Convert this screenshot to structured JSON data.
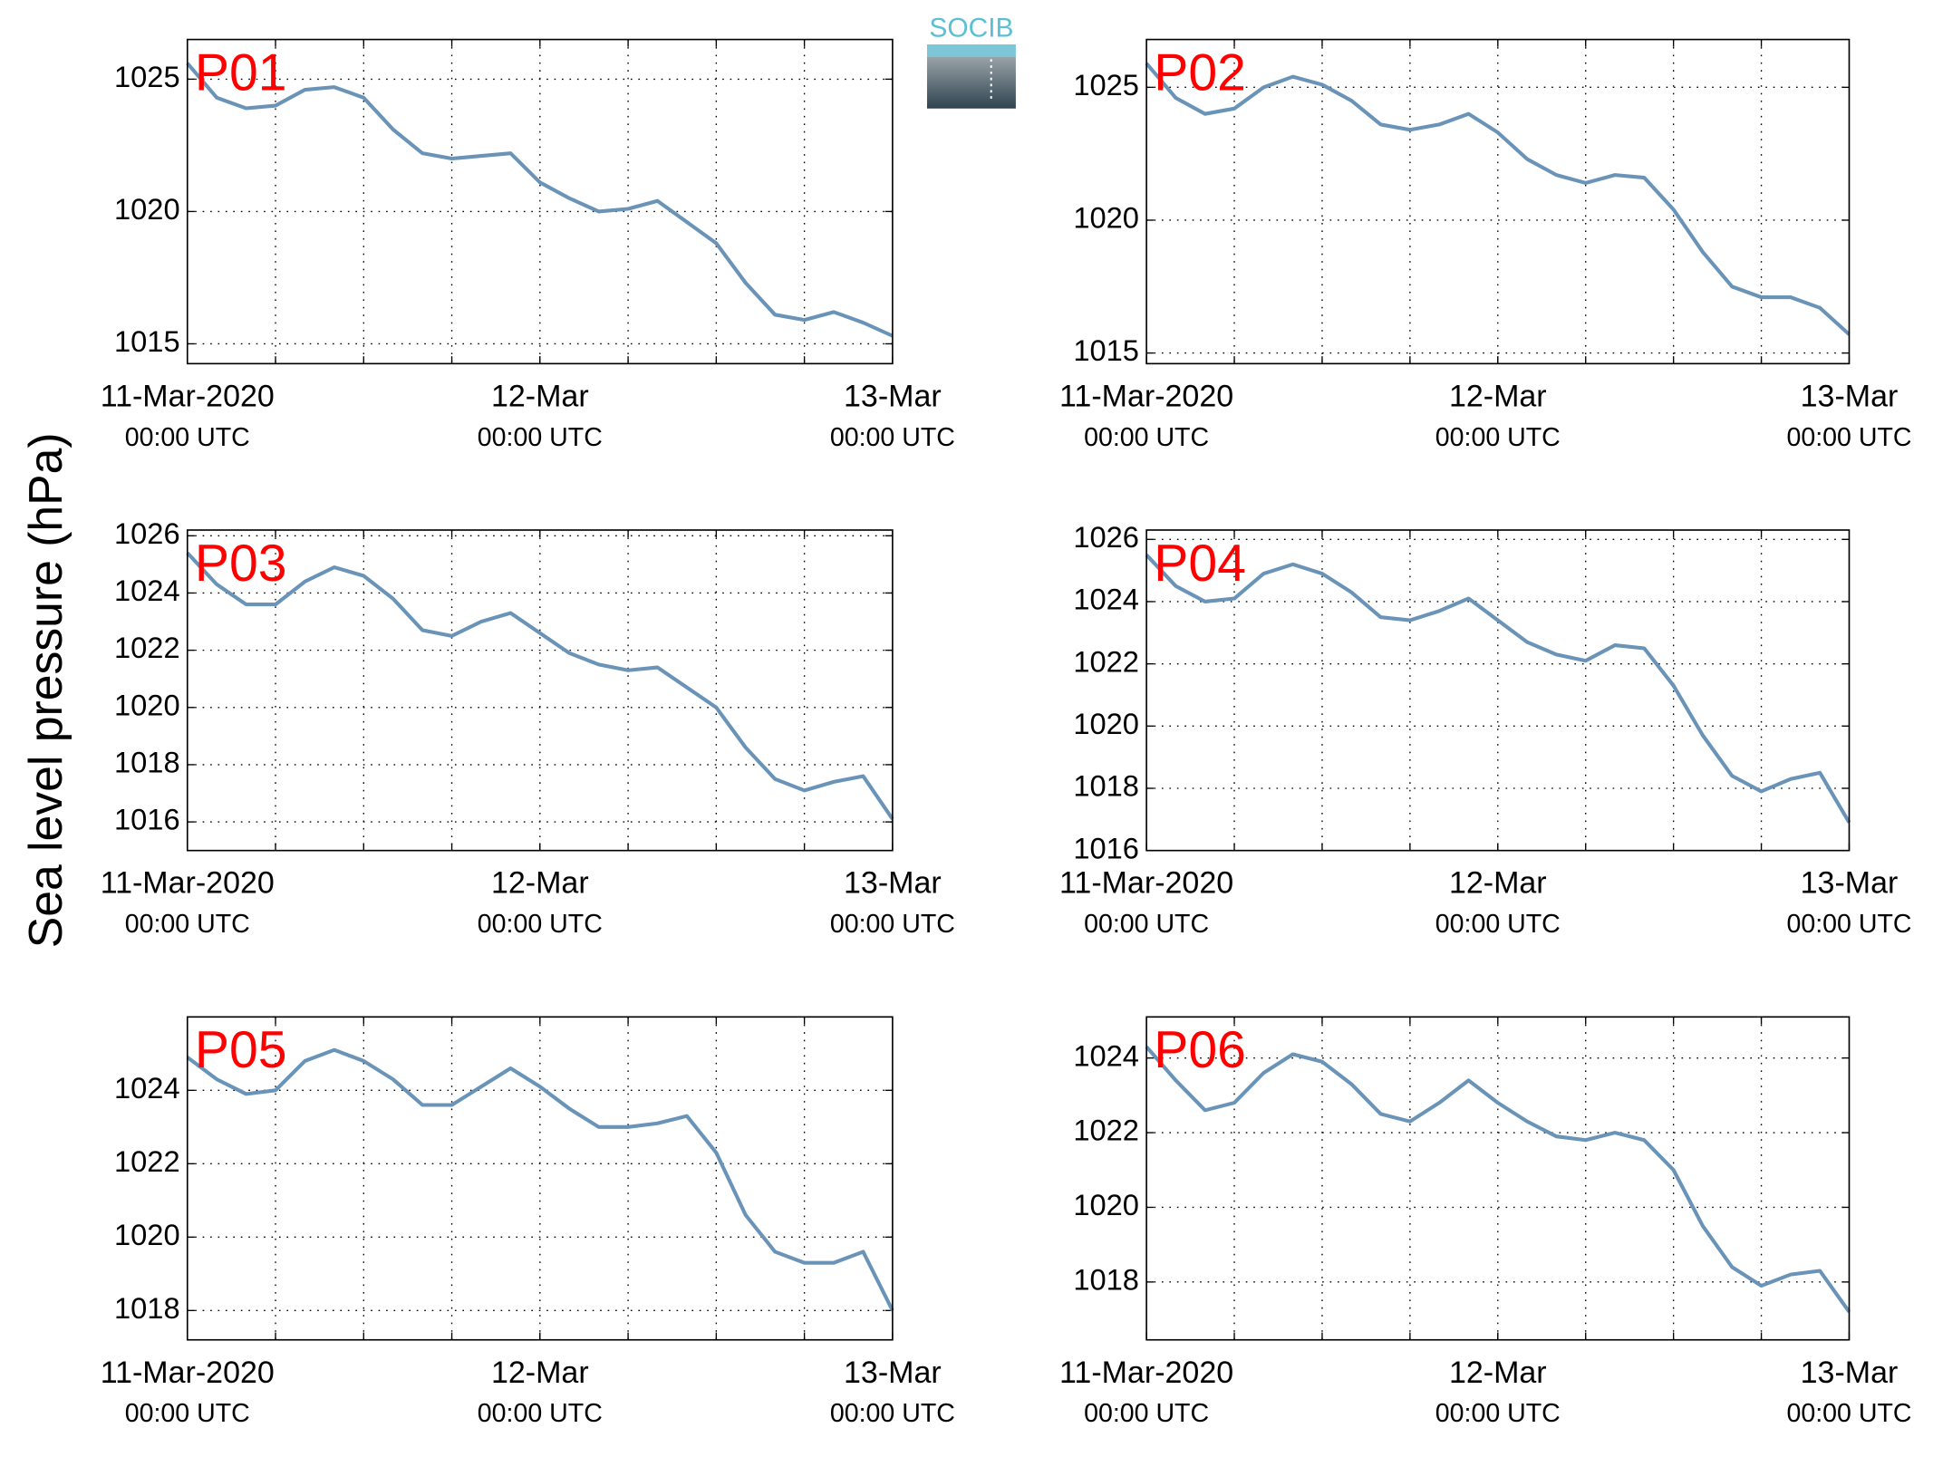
{
  "ylabel": "Sea level pressure (hPa)",
  "logo": "SOCIB",
  "chart_data": [
    {
      "type": "line",
      "title": "P01",
      "color": "#6a93b8",
      "x": [
        0,
        2,
        4,
        6,
        8,
        10,
        12,
        14,
        16,
        18,
        20,
        22,
        24,
        26,
        28,
        30,
        32,
        34,
        36,
        38,
        40,
        42,
        44,
        46,
        48
      ],
      "values": [
        1025.6,
        1024.3,
        1023.9,
        1024.0,
        1024.6,
        1024.7,
        1024.3,
        1023.1,
        1022.2,
        1022.0,
        1022.1,
        1022.2,
        1021.1,
        1020.5,
        1020.0,
        1020.1,
        1020.4,
        1019.6,
        1018.8,
        1017.3,
        1016.1,
        1015.9,
        1016.2,
        1015.8,
        1015.3
      ],
      "xlim": [
        0,
        48
      ],
      "ylim": [
        1014.25,
        1026.5
      ],
      "yticks": [
        1015,
        1020,
        1025
      ],
      "xticks": [
        {
          "value": 0,
          "label": "11-Mar-2020",
          "sublabel": "00:00 UTC"
        },
        {
          "value": 24,
          "label": "12-Mar",
          "sublabel": "00:00 UTC"
        },
        {
          "value": 48,
          "label": "13-Mar",
          "sublabel": "00:00 UTC"
        }
      ],
      "xgrid": [
        6,
        12,
        18,
        24,
        30,
        36,
        42
      ],
      "grid": true
    },
    {
      "type": "line",
      "title": "P02",
      "color": "#6a93b8",
      "x": [
        0,
        2,
        4,
        6,
        8,
        10,
        12,
        14,
        16,
        18,
        20,
        22,
        24,
        26,
        28,
        30,
        32,
        34,
        36,
        38,
        40,
        42,
        44,
        46,
        48
      ],
      "values": [
        1025.9,
        1024.6,
        1024.0,
        1024.2,
        1025.0,
        1025.4,
        1025.1,
        1024.5,
        1023.6,
        1023.4,
        1023.6,
        1024.0,
        1023.3,
        1022.3,
        1021.7,
        1021.4,
        1021.7,
        1021.6,
        1020.4,
        1018.8,
        1017.5,
        1017.1,
        1017.1,
        1016.7,
        1015.7
      ],
      "xlim": [
        0,
        48
      ],
      "ylim": [
        1014.6,
        1026.8
      ],
      "yticks": [
        1015,
        1020,
        1025
      ],
      "xticks": [
        {
          "value": 0,
          "label": "11-Mar-2020",
          "sublabel": "00:00 UTC"
        },
        {
          "value": 24,
          "label": "12-Mar",
          "sublabel": "00:00 UTC"
        },
        {
          "value": 48,
          "label": "13-Mar",
          "sublabel": "00:00 UTC"
        }
      ],
      "xgrid": [
        6,
        12,
        18,
        24,
        30,
        36,
        42
      ],
      "grid": true
    },
    {
      "type": "line",
      "title": "P03",
      "color": "#6a93b8",
      "x": [
        0,
        2,
        4,
        6,
        8,
        10,
        12,
        14,
        16,
        18,
        20,
        22,
        24,
        26,
        28,
        30,
        32,
        34,
        36,
        38,
        40,
        42,
        44,
        46,
        48
      ],
      "values": [
        1025.4,
        1024.3,
        1023.6,
        1023.6,
        1024.4,
        1024.9,
        1024.6,
        1023.8,
        1022.7,
        1022.5,
        1023.0,
        1023.3,
        1022.6,
        1021.9,
        1021.5,
        1021.3,
        1021.4,
        1020.7,
        1020.0,
        1018.6,
        1017.5,
        1017.1,
        1017.4,
        1017.6,
        1016.1
      ],
      "xlim": [
        0,
        48
      ],
      "ylim": [
        1015.0,
        1026.2
      ],
      "yticks": [
        1016,
        1018,
        1020,
        1022,
        1024,
        1026
      ],
      "xticks": [
        {
          "value": 0,
          "label": "11-Mar-2020",
          "sublabel": "00:00 UTC"
        },
        {
          "value": 24,
          "label": "12-Mar",
          "sublabel": "00:00 UTC"
        },
        {
          "value": 48,
          "label": "13-Mar",
          "sublabel": "00:00 UTC"
        }
      ],
      "xgrid": [
        6,
        12,
        18,
        24,
        30,
        36,
        42
      ],
      "grid": true
    },
    {
      "type": "line",
      "title": "P04",
      "color": "#6a93b8",
      "x": [
        0,
        2,
        4,
        6,
        8,
        10,
        12,
        14,
        16,
        18,
        20,
        22,
        24,
        26,
        28,
        30,
        32,
        34,
        36,
        38,
        40,
        42,
        44,
        46,
        48
      ],
      "values": [
        1025.5,
        1024.5,
        1024.0,
        1024.1,
        1024.9,
        1025.2,
        1024.9,
        1024.3,
        1023.5,
        1023.4,
        1023.7,
        1024.1,
        1023.4,
        1022.7,
        1022.3,
        1022.1,
        1022.6,
        1022.5,
        1021.3,
        1019.7,
        1018.4,
        1017.9,
        1018.3,
        1018.5,
        1016.9
      ],
      "xlim": [
        0,
        48
      ],
      "ylim": [
        1016,
        1026.3
      ],
      "yticks": [
        1016,
        1018,
        1020,
        1022,
        1024,
        1026
      ],
      "xticks": [
        {
          "value": 0,
          "label": "11-Mar-2020",
          "sublabel": "00:00 UTC"
        },
        {
          "value": 24,
          "label": "12-Mar",
          "sublabel": "00:00 UTC"
        },
        {
          "value": 48,
          "label": "13-Mar",
          "sublabel": "00:00 UTC"
        }
      ],
      "xgrid": [
        6,
        12,
        18,
        24,
        30,
        36,
        42
      ],
      "grid": true
    },
    {
      "type": "line",
      "title": "P05",
      "color": "#6a93b8",
      "x": [
        0,
        2,
        4,
        6,
        8,
        10,
        12,
        14,
        16,
        18,
        20,
        22,
        24,
        26,
        28,
        30,
        32,
        34,
        36,
        38,
        40,
        42,
        44,
        46,
        48
      ],
      "values": [
        1024.9,
        1024.3,
        1023.9,
        1024.0,
        1024.8,
        1025.1,
        1024.8,
        1024.3,
        1023.6,
        1023.6,
        1024.1,
        1024.6,
        1024.1,
        1023.5,
        1023.0,
        1023.0,
        1023.1,
        1023.3,
        1022.3,
        1020.6,
        1019.6,
        1019.3,
        1019.3,
        1019.6,
        1018.0
      ],
      "xlim": [
        0,
        48
      ],
      "ylim": [
        1017.2,
        1026.0
      ],
      "yticks": [
        1018,
        1020,
        1022,
        1024
      ],
      "xticks": [
        {
          "value": 0,
          "label": "11-Mar-2020",
          "sublabel": "00:00 UTC"
        },
        {
          "value": 24,
          "label": "12-Mar",
          "sublabel": "00:00 UTC"
        },
        {
          "value": 48,
          "label": "13-Mar",
          "sublabel": "00:00 UTC"
        }
      ],
      "xgrid": [
        6,
        12,
        18,
        24,
        30,
        36,
        42
      ],
      "grid": true
    },
    {
      "type": "line",
      "title": "P06",
      "color": "#6a93b8",
      "x": [
        0,
        2,
        4,
        6,
        8,
        10,
        12,
        14,
        16,
        18,
        20,
        22,
        24,
        26,
        28,
        30,
        32,
        34,
        36,
        38,
        40,
        42,
        44,
        46,
        48
      ],
      "values": [
        1024.3,
        1023.4,
        1022.6,
        1022.8,
        1023.6,
        1024.1,
        1023.9,
        1023.3,
        1022.5,
        1022.3,
        1022.8,
        1023.4,
        1022.8,
        1022.3,
        1021.9,
        1021.8,
        1022.0,
        1021.8,
        1021.0,
        1019.5,
        1018.4,
        1017.9,
        1018.2,
        1018.3,
        1017.2
      ],
      "xlim": [
        0,
        48
      ],
      "ylim": [
        1016.45,
        1025.1
      ],
      "yticks": [
        1018,
        1020,
        1022,
        1024
      ],
      "xticks": [
        {
          "value": 0,
          "label": "11-Mar-2020",
          "sublabel": "00:00 UTC"
        },
        {
          "value": 24,
          "label": "12-Mar",
          "sublabel": "00:00 UTC"
        },
        {
          "value": 48,
          "label": "13-Mar",
          "sublabel": "00:00 UTC"
        }
      ],
      "xgrid": [
        6,
        12,
        18,
        24,
        30,
        36,
        42
      ],
      "grid": true
    }
  ]
}
